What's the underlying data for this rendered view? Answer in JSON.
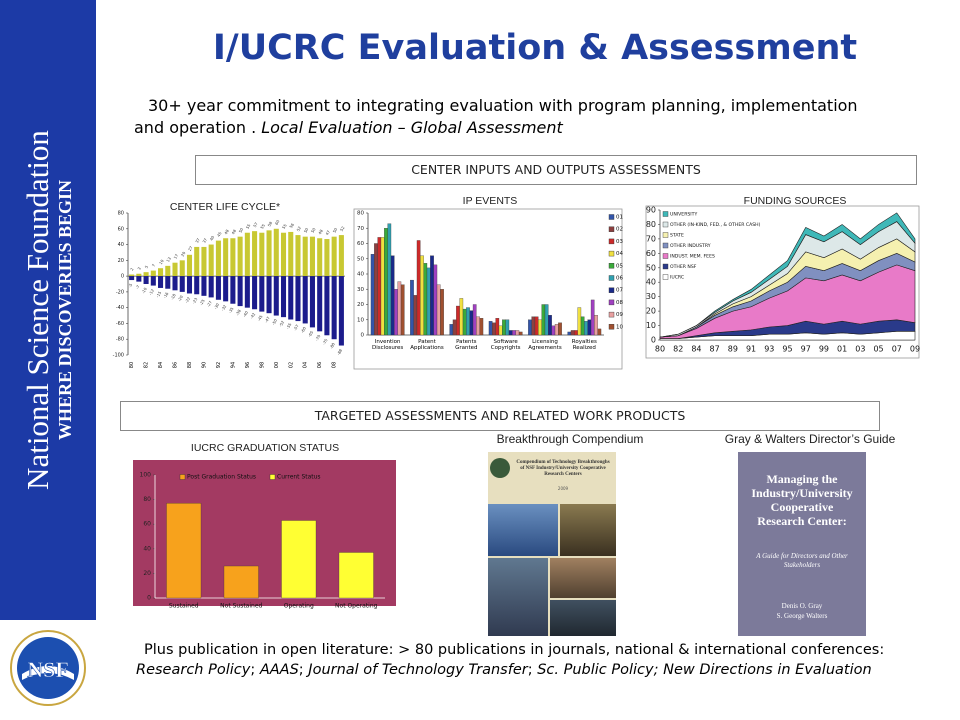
{
  "sidebar": {
    "title": "National Science Foundation",
    "subtitle": "WHERE DISCOVERIES BEGIN"
  },
  "logo": "NSF",
  "header": {
    "title": "I/UCRC Evaluation & Assessment"
  },
  "intro": [
    {
      "text": "30+ year commitment to integrating evaluation with program planning, implementation and operation . ",
      "italic": false
    },
    {
      "text": "Local Evaluation – Global Assessment",
      "italic": true
    }
  ],
  "section1": "CENTER INPUTS AND OUTPUTS ASSESSMENTS",
  "section2": "TARGETED ASSESSMENTS AND RELATED WORK PRODUCTS",
  "chart_data": [
    {
      "type": "bar",
      "title": "CENTER LIFE CYCLE*",
      "stacked": true,
      "data_labels": true,
      "categories": [
        "80",
        null,
        "82",
        null,
        "84",
        null,
        "86",
        null,
        "88",
        null,
        "90",
        null,
        "92",
        null,
        "94",
        null,
        "96",
        null,
        "98",
        null,
        "00",
        null,
        "02",
        null,
        "04",
        null,
        "06",
        null,
        "08",
        null
      ],
      "series": [
        {
          "color": "#c8c832",
          "values": [
            2,
            3,
            5,
            7,
            10,
            13,
            17,
            20,
            27,
            37,
            37,
            40,
            45,
            48,
            48,
            50,
            55,
            57,
            55,
            58,
            60,
            55,
            56,
            52,
            50,
            50,
            48,
            47,
            50,
            52
          ]
        },
        {
          "color": "#1c1c8c",
          "values": [
            -5,
            -7,
            -10,
            -12,
            -15,
            -16,
            -18,
            -20,
            -22,
            -23,
            -25,
            -27,
            -30,
            -32,
            -35,
            -38,
            -40,
            -42,
            -45,
            -47,
            -50,
            -52,
            -55,
            -57,
            -60,
            -65,
            -70,
            -75,
            -80,
            -88
          ]
        }
      ],
      "ylim": [
        -100,
        80
      ],
      "yticks": [
        -100,
        -80,
        -60,
        -40,
        -20,
        0,
        20,
        40,
        60,
        80
      ],
      "grid": false
    },
    {
      "type": "bar",
      "title": "IP EVENTS",
      "stacked": false,
      "legend": "right",
      "categories": [
        "Invention Disclosures",
        "Patent Applications",
        "Patents Granted",
        "Software Copyrights",
        "Licensing Agreements",
        "Royalties Realized"
      ],
      "series": [
        {
          "name": "01",
          "color": "#3355aa",
          "values": [
            53,
            36,
            7,
            9,
            10,
            2
          ]
        },
        {
          "name": "02",
          "color": "#8c4040",
          "values": [
            60,
            26,
            10,
            8,
            12,
            3
          ]
        },
        {
          "name": "03",
          "color": "#cc2a2a",
          "values": [
            64,
            62,
            19,
            11,
            12,
            3
          ]
        },
        {
          "name": "04",
          "color": "#f0e040",
          "values": [
            64,
            52,
            24,
            6,
            10,
            18
          ]
        },
        {
          "name": "05",
          "color": "#3aaa3a",
          "values": [
            70,
            47,
            17,
            10,
            20,
            12
          ]
        },
        {
          "name": "06",
          "color": "#30a0b0",
          "values": [
            73,
            44,
            18,
            10,
            20,
            9
          ]
        },
        {
          "name": "07",
          "color": "#1a2a8a",
          "values": [
            52,
            52,
            16,
            3,
            13,
            10
          ]
        },
        {
          "name": "08",
          "color": "#a040c0",
          "values": [
            30,
            46,
            20,
            3,
            6,
            23
          ]
        },
        {
          "name": "09",
          "color": "#e8a0a0",
          "values": [
            35,
            33,
            12,
            3,
            7,
            13
          ]
        },
        {
          "name": "10",
          "color": "#a05030",
          "values": [
            33,
            30,
            11,
            2,
            8,
            4
          ]
        }
      ],
      "ylim": [
        0,
        80
      ],
      "yticks": [
        0,
        10,
        20,
        30,
        40,
        50,
        60,
        70,
        80
      ],
      "grid": false
    },
    {
      "type": "area",
      "title": "FUNDING SOURCES",
      "legend": "upper left",
      "categories": [
        "80",
        "82",
        "84",
        "87",
        "89",
        "91",
        "93",
        "95",
        "97",
        "99",
        "01",
        "03",
        "05",
        "07",
        "09"
      ],
      "series": [
        {
          "name": "UNIVERSITY",
          "color": "#3fb8b8",
          "values": [
            0,
            0,
            0,
            1,
            1,
            2,
            3,
            4,
            5,
            4,
            5,
            4,
            5,
            6,
            3
          ]
        },
        {
          "name": "OTHER (IN-KIND, FED., & OTHER CASH)",
          "color": "#dde8e8",
          "values": [
            0,
            1,
            1,
            1,
            2,
            3,
            4,
            5,
            12,
            11,
            12,
            10,
            11,
            12,
            6
          ]
        },
        {
          "name": "STATE",
          "color": "#f5f0b0",
          "values": [
            0,
            0,
            0,
            1,
            2,
            3,
            4,
            6,
            10,
            9,
            10,
            8,
            9,
            10,
            7
          ]
        },
        {
          "name": "OTHER INDUSTRY",
          "color": "#8090c0",
          "values": [
            0,
            0,
            1,
            2,
            3,
            4,
            5,
            6,
            8,
            7,
            8,
            7,
            8,
            8,
            6
          ]
        },
        {
          "name": "INDUST. MEM. FEES",
          "color": "#e87ac8",
          "values": [
            1,
            2,
            5,
            10,
            14,
            16,
            20,
            24,
            30,
            30,
            32,
            30,
            34,
            38,
            36
          ]
        },
        {
          "name": "OTHER NSF",
          "color": "#2a3a8a",
          "values": [
            0,
            0,
            1,
            2,
            3,
            4,
            5,
            6,
            8,
            7,
            8,
            7,
            8,
            8,
            6
          ]
        },
        {
          "name": "IUCRC",
          "color": "#ffffff",
          "values": [
            1,
            1,
            2,
            3,
            3,
            3,
            4,
            4,
            5,
            4,
            5,
            4,
            5,
            6,
            6
          ]
        }
      ],
      "ylim": [
        0,
        90
      ],
      "yticks": [
        0,
        10,
        20,
        30,
        40,
        50,
        60,
        70,
        80,
        90
      ],
      "grid": false
    },
    {
      "type": "bar",
      "title": "IUCRC GRADUATION STATUS",
      "stacked": true,
      "legend": "top",
      "categories": [
        "Sustained",
        "Not Sustained",
        "Operating",
        "Not Operating"
      ],
      "series": [
        {
          "name": "Post Graduation Status",
          "color": "#f7a21c",
          "values": [
            77,
            26,
            null,
            null
          ]
        },
        {
          "name": "Current Status",
          "color": "#ffff33",
          "values": [
            null,
            null,
            63,
            37
          ]
        }
      ],
      "ylim": [
        0,
        100
      ],
      "yticks": [
        0,
        20,
        40,
        60,
        80,
        100
      ],
      "grid": false
    }
  ],
  "books": [
    {
      "caption": "Breakthrough Compendium",
      "cover_title": "Compendium of Technology Breakthroughs of NSF Industry/University Cooperative Research Centers",
      "cover_year": "2009"
    },
    {
      "caption": "Gray & Walters Director’s Guide",
      "cover_title": "Managing the Industry/University Cooperative Research Center:",
      "cover_subtitle": "A Guide for Directors and Other Stakeholders",
      "authors": [
        "Denis O. Gray",
        "S. George Walters"
      ]
    }
  ],
  "footer": [
    {
      "text": "Plus publication in open literature: > 80 publications in journals, national & international conferences: ",
      "italic": false
    },
    {
      "text": "Research Policy",
      "italic": true
    },
    {
      "text": "; ",
      "italic": false
    },
    {
      "text": "AAAS",
      "italic": true
    },
    {
      "text": "; ",
      "italic": false
    },
    {
      "text": "Journal of Technology Transfer",
      "italic": true
    },
    {
      "text": "; ",
      "italic": false
    },
    {
      "text": "Sc. Public Policy; New Directions in Evaluation",
      "italic": true
    }
  ]
}
